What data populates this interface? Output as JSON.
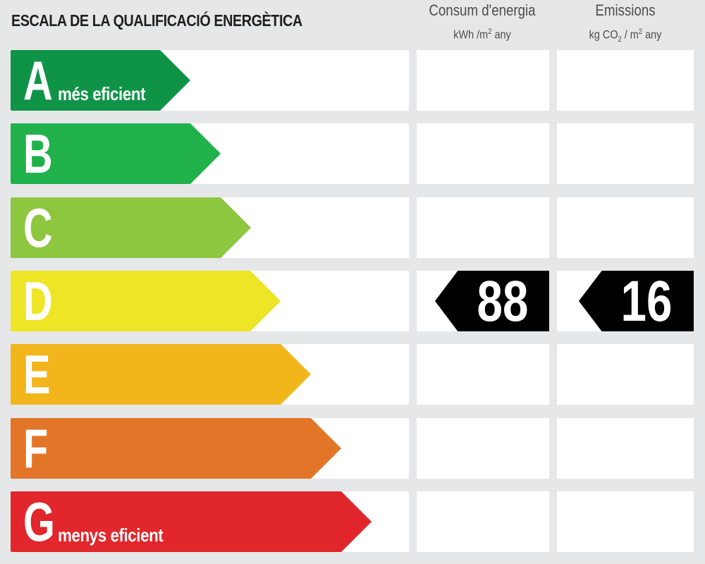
{
  "title": "ESCALA DE LA QUALIFICACIÓ ENERGÈTICA",
  "columns": {
    "energy": {
      "label": "Consum d'energia",
      "unit_pre": "kWh /m",
      "unit_sup": "2",
      "unit_post": " any"
    },
    "emissions": {
      "label": "Emissions",
      "unit_pre": "kg CO",
      "unit_sub": "2",
      "unit_mid": " / m",
      "unit_sup": "2",
      "unit_post": " any"
    }
  },
  "chart_data": {
    "type": "bar",
    "categories": [
      "A",
      "B",
      "C",
      "D",
      "E",
      "F",
      "G"
    ],
    "category_notes": {
      "A": "més eficient",
      "G": "menys eficient"
    },
    "colors": [
      "#0f9447",
      "#20b14b",
      "#8dc63f",
      "#eee526",
      "#f2b51c",
      "#e27528",
      "#e1262c"
    ],
    "rating": "D",
    "values": {
      "energy": 88,
      "emissions": 16
    }
  }
}
